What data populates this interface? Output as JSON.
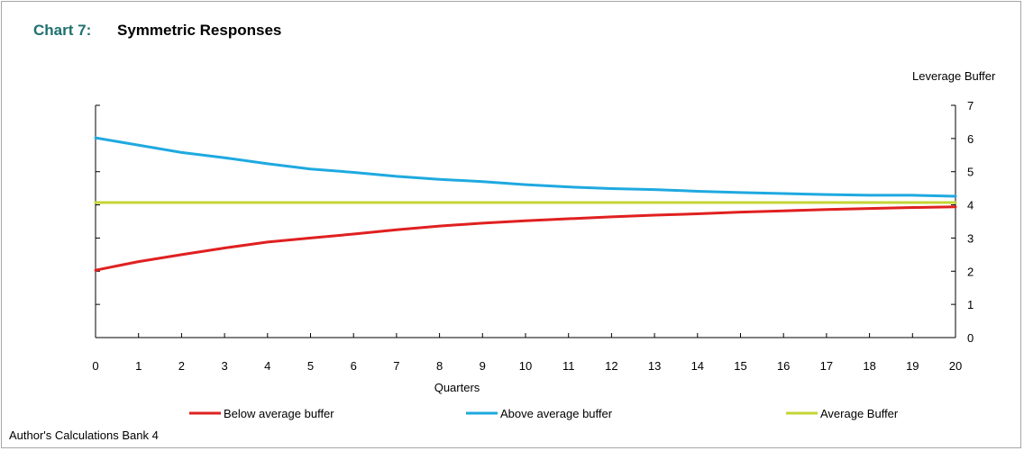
{
  "title": {
    "number": "Chart 7:",
    "text": "Symmetric Responses"
  },
  "footer": "Author's Calculations   Bank 4",
  "chart_data": {
    "type": "line",
    "xlabel": "Quarters",
    "ylabel": "Leverage Buffer",
    "x": [
      0,
      1,
      2,
      3,
      4,
      5,
      6,
      7,
      8,
      9,
      10,
      11,
      12,
      13,
      14,
      15,
      16,
      17,
      18,
      19,
      20
    ],
    "xlim": [
      0,
      20
    ],
    "ylim": [
      0,
      7
    ],
    "yticks": [
      0,
      1,
      2,
      3,
      4,
      5,
      6,
      7
    ],
    "y_axis_side": "right",
    "grid": false,
    "legend_position": "bottom",
    "series": [
      {
        "name": "Below average buffer",
        "color": "#e02020",
        "values": [
          2.03,
          2.29,
          2.5,
          2.7,
          2.88,
          3.0,
          3.12,
          3.25,
          3.36,
          3.45,
          3.52,
          3.58,
          3.64,
          3.69,
          3.73,
          3.78,
          3.82,
          3.86,
          3.89,
          3.92,
          3.94
        ]
      },
      {
        "name": "Above average buffer",
        "color": "#1fa9e0",
        "values": [
          6.02,
          5.8,
          5.58,
          5.42,
          5.24,
          5.08,
          4.98,
          4.86,
          4.77,
          4.7,
          4.61,
          4.54,
          4.49,
          4.46,
          4.41,
          4.37,
          4.34,
          4.31,
          4.29,
          4.29,
          4.26
        ]
      },
      {
        "name": "Average Buffer",
        "color": "#c4d434",
        "values": [
          4.07,
          4.07,
          4.07,
          4.07,
          4.07,
          4.07,
          4.07,
          4.07,
          4.07,
          4.07,
          4.07,
          4.07,
          4.07,
          4.07,
          4.07,
          4.07,
          4.07,
          4.07,
          4.07,
          4.07,
          4.07
        ]
      }
    ]
  }
}
